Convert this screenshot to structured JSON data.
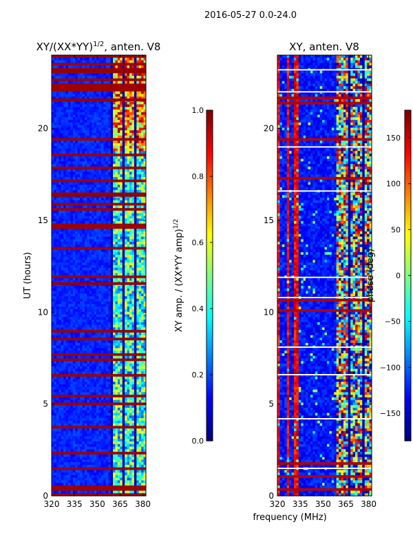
{
  "suptitle": "2016-05-27 0.0-24.0",
  "shared_xlabel": "frequency (MHz)",
  "chart_data": [
    {
      "type": "heatmap",
      "title": "XY/(XX*YY)",
      "title_exponent": "1/2",
      "title_suffix": ", anten. V8",
      "xlabel": "",
      "ylabel": "UT (hours)",
      "xlim": [
        320,
        382
      ],
      "ylim": [
        0,
        24
      ],
      "xticks": [
        320,
        335,
        350,
        365,
        380
      ],
      "yticks": [
        0,
        5,
        10,
        15,
        20
      ],
      "colormap": "jet",
      "colorbar": {
        "label": "XY amp. / (XX*YY amp)",
        "label_exponent": "1/2",
        "range": [
          0.0,
          1.0
        ],
        "ticks": [
          "0.0",
          "0.2",
          "0.4",
          "0.6",
          "0.8",
          "1.0"
        ]
      },
      "features": {
        "background_level": 0.12,
        "active_band_mhz": [
          359,
          382
        ],
        "high_band_hours": [
          18.8,
          24
        ],
        "saturated_rows_hours": [
          16.4,
          21.6,
          11.6,
          23.2
        ]
      }
    },
    {
      "type": "heatmap",
      "title": "XY, anten. V8",
      "xlabel": "",
      "ylabel": "",
      "xlim": [
        320,
        382
      ],
      "ylim": [
        0,
        24
      ],
      "xticks": [
        320,
        335,
        350,
        365,
        380
      ],
      "yticks": [
        0,
        5,
        10,
        15,
        20
      ],
      "colormap": "jet",
      "colorbar": {
        "label": "phase (deg)",
        "range": [
          -180,
          180
        ],
        "ticks": [
          "−150",
          "−100",
          "−50",
          "0",
          "50",
          "100",
          "150"
        ]
      },
      "features": {
        "background_level": -140,
        "active_band_mhz": [
          359,
          382
        ],
        "red_stripes_mhz": [
          320.5,
          327,
          332
        ],
        "white_gap_rows_hours": [
          23.2,
          22.0,
          19.0,
          16.6,
          11.9,
          10.8,
          8.1,
          6.6,
          4.2,
          1.5
        ]
      }
    }
  ]
}
